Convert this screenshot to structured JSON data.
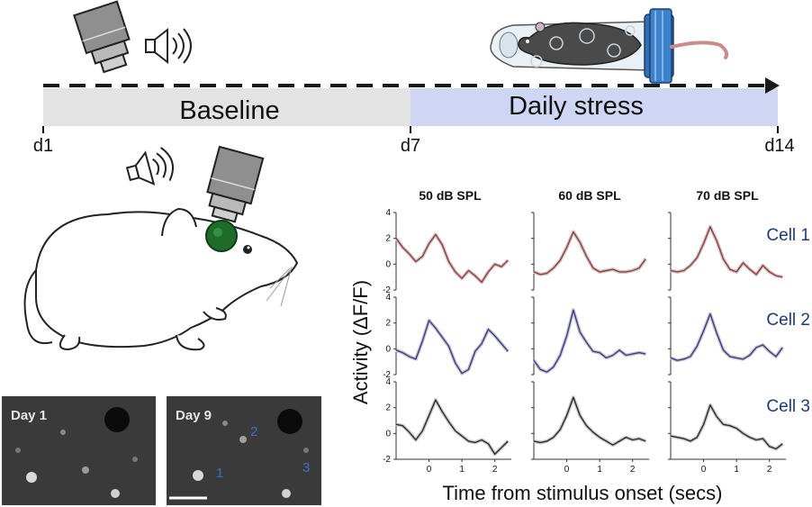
{
  "timeline": {
    "baseline_label": "Baseline",
    "stress_label": "Daily stress",
    "ticks": [
      "d1",
      "d7",
      "d14"
    ],
    "colors": {
      "baseline_bar": "#e3e3e3",
      "stress_bar": "#cfd6f4",
      "arrow": "#1a1a1a"
    }
  },
  "icons": [
    "microscope-objective-icon",
    "speaker-sound-icon",
    "mouse-restraint-tube-icon",
    "mouse-illustration-icon"
  ],
  "images": [
    {
      "label": "Day 1",
      "cell_labels": []
    },
    {
      "label": "Day 9",
      "cell_labels": [
        "1",
        "2",
        "3"
      ]
    }
  ],
  "chart_data": {
    "type": "line",
    "columns": [
      "50 dB SPL",
      "60 dB SPL",
      "70 dB SPL"
    ],
    "rows": [
      "Cell 1",
      "Cell 2",
      "Cell 3"
    ],
    "ylabel": "Activity (ΔF/F)",
    "xlabel": "Time from stimulus onset (secs)",
    "xlim": [
      -1,
      2.5
    ],
    "ylim": [
      -2,
      4
    ],
    "yticks": [
      "-2",
      "0",
      "2",
      "4"
    ],
    "xticks": [
      "0",
      "1",
      "2"
    ],
    "x": [
      -1.0,
      -0.8,
      -0.6,
      -0.4,
      -0.2,
      0.0,
      0.2,
      0.4,
      0.6,
      0.8,
      1.0,
      1.2,
      1.4,
      1.6,
      1.8,
      2.0,
      2.2,
      2.4
    ],
    "series": [
      {
        "name": "Cell 1",
        "color": "#9b3a3a",
        "panels": [
          [
            2.0,
            1.3,
            0.8,
            0.2,
            0.6,
            1.6,
            2.3,
            1.5,
            0.2,
            -0.6,
            -1.1,
            -0.5,
            -0.9,
            -1.4,
            -0.6,
            0.0,
            -0.2,
            0.3
          ],
          [
            -0.6,
            -0.8,
            -0.7,
            -0.3,
            0.3,
            1.3,
            2.5,
            1.7,
            0.6,
            -0.3,
            -0.6,
            -0.5,
            -0.4,
            -0.6,
            -0.6,
            -0.5,
            -0.3,
            0.4
          ],
          [
            -0.5,
            -0.6,
            -0.5,
            -0.1,
            0.5,
            1.6,
            2.9,
            1.8,
            0.4,
            -0.4,
            -0.6,
            0.1,
            -0.4,
            -0.8,
            -0.1,
            -0.6,
            -0.9,
            -1.0
          ]
        ]
      },
      {
        "name": "Cell 2",
        "color": "#3b3c8c",
        "panels": [
          [
            -0.1,
            -0.3,
            -0.6,
            -0.8,
            0.6,
            2.2,
            1.6,
            0.9,
            0.2,
            -1.1,
            -1.9,
            -1.6,
            -0.2,
            0.4,
            1.5,
            1.0,
            0.4,
            -0.2
          ],
          [
            -0.9,
            -1.6,
            -1.8,
            -1.4,
            -0.5,
            1.0,
            3.0,
            1.3,
            0.5,
            -0.2,
            -0.3,
            -0.7,
            -0.5,
            -0.1,
            -0.5,
            -0.4,
            -0.3,
            -0.4
          ],
          [
            -0.7,
            -0.9,
            -0.8,
            -0.6,
            0.2,
            1.4,
            2.7,
            1.2,
            -0.1,
            -0.6,
            -0.7,
            -0.8,
            -0.5,
            0.1,
            0.3,
            -0.2,
            -0.6,
            0.1
          ]
        ]
      },
      {
        "name": "Cell 3",
        "color": "#2b2b2b",
        "panels": [
          [
            0.7,
            0.6,
            0.1,
            -0.5,
            0.2,
            1.4,
            2.6,
            1.7,
            0.9,
            0.2,
            -0.2,
            -0.6,
            -0.7,
            -0.5,
            -0.8,
            -1.6,
            -1.1,
            -0.6
          ],
          [
            -0.6,
            -0.7,
            -0.6,
            -0.3,
            0.3,
            1.4,
            2.8,
            1.4,
            0.6,
            0.1,
            -0.3,
            -0.6,
            -0.9,
            -0.6,
            -0.3,
            -0.5,
            -0.4,
            -0.6
          ],
          [
            -0.2,
            -0.3,
            -0.4,
            -0.6,
            -0.3,
            0.7,
            2.2,
            1.3,
            0.7,
            0.6,
            0.4,
            0.0,
            -0.3,
            -0.5,
            -0.4,
            -1.0,
            -1.2,
            -0.8
          ]
        ]
      }
    ]
  }
}
